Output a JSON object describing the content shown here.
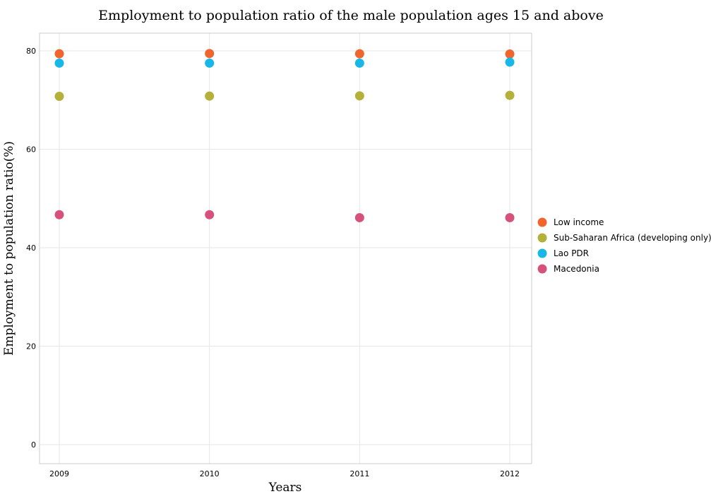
{
  "chart_data": {
    "type": "scatter",
    "title": "Employment to population ratio of the male population ages 15 and above",
    "xlabel": "Years",
    "ylabel": "Employment to population ratio(%)",
    "categories": [
      "2009",
      "2010",
      "2011",
      "2012"
    ],
    "ylim": [
      0,
      80
    ],
    "yticks": [
      0,
      20,
      40,
      60,
      80
    ],
    "grid": true,
    "legend_position": "right",
    "series": [
      {
        "name": "Low income",
        "color": "#f0642d",
        "values": [
          79.4,
          79.45,
          79.4,
          79.35
        ]
      },
      {
        "name": "Sub-Saharan Africa (developing only)",
        "color": "#b5b039",
        "values": [
          70.75,
          70.8,
          70.85,
          70.95
        ]
      },
      {
        "name": "Lao PDR",
        "color": "#17b8e8",
        "values": [
          77.5,
          77.5,
          77.5,
          77.7
        ]
      },
      {
        "name": "Macedonia",
        "color": "#d7527a",
        "values": [
          46.7,
          46.7,
          46.1,
          46.1
        ]
      }
    ]
  }
}
